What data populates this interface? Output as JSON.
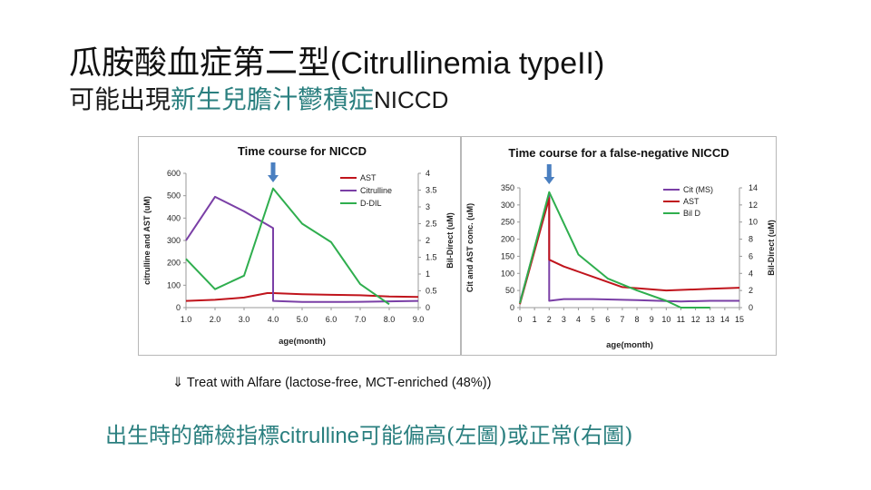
{
  "title": {
    "main": "瓜胺酸血症第二型",
    "latin": "(Citrullinemia typeII)"
  },
  "subtitle": {
    "lead": "可能出現",
    "highlight": "新生兒膽汁鬱積症",
    "latin": "NICCD"
  },
  "note": "⇓ Treat with Alfare (lactose-free, MCT-enriched (48%))",
  "footer": {
    "p1": "出生時的篩檢指標",
    "latin": "citrulline",
    "p2": "可能偏高(左圖)或正常(右圖)"
  },
  "colors": {
    "ast": "#c0141c",
    "citrulline": "#7a3fa6",
    "dbil": "#2fae4e",
    "arrow": "#4a7fc0",
    "teal": "#2a7f7f"
  },
  "chart_data": [
    {
      "type": "line",
      "title": "Time course for NICCD",
      "xlabel": "age(month)",
      "ylabel": "citrulline and AST (uM)",
      "y2label": "Bil-Direct (uM)",
      "xlim": [
        1,
        9
      ],
      "ylim": [
        0,
        600
      ],
      "y2lim": [
        0,
        4
      ],
      "x_ticks": [
        "1.0",
        "2.0",
        "3.0",
        "4.0",
        "5.0",
        "6.0",
        "7.0",
        "8.0",
        "9.0"
      ],
      "y_ticks": [
        "0",
        "100",
        "200",
        "300",
        "400",
        "500",
        "600"
      ],
      "y2_ticks": [
        "0",
        "0.5",
        "1",
        "1.5",
        "2",
        "2.5",
        "3",
        "3.5",
        "4"
      ],
      "arrow_x": 4.0,
      "series": [
        {
          "name": "AST",
          "axis": "left",
          "color_key": "ast",
          "points": [
            [
              1.0,
              30
            ],
            [
              2.0,
              35
            ],
            [
              3.0,
              45
            ],
            [
              3.8,
              65
            ],
            [
              4.0,
              65
            ],
            [
              5.0,
              60
            ],
            [
              6.0,
              57
            ],
            [
              7.0,
              55
            ],
            [
              8.0,
              50
            ],
            [
              9.0,
              48
            ]
          ]
        },
        {
          "name": "Citrulline",
          "axis": "left",
          "color_key": "citrulline",
          "points": [
            [
              1.0,
              300
            ],
            [
              2.0,
              495
            ],
            [
              3.0,
              430
            ],
            [
              4.0,
              355
            ],
            [
              4.0,
              30
            ],
            [
              5.0,
              25
            ],
            [
              6.0,
              25
            ],
            [
              7.0,
              26
            ],
            [
              8.0,
              28
            ],
            [
              9.0,
              30
            ]
          ]
        },
        {
          "name": "D-DIL",
          "axis": "right",
          "color_key": "dbil",
          "points": [
            [
              1.0,
              1.45
            ],
            [
              2.0,
              0.55
            ],
            [
              3.0,
              0.95
            ],
            [
              4.0,
              3.55
            ],
            [
              5.0,
              2.5
            ],
            [
              6.0,
              1.95
            ],
            [
              7.0,
              0.7
            ],
            [
              8.0,
              0.1
            ]
          ]
        }
      ]
    },
    {
      "type": "line",
      "title": "Time course for a false-negative NICCD",
      "xlabel": "age(month)",
      "ylabel": "Cit and AST conc. (uM)",
      "y2label": "Bil-Direct (uM)",
      "xlim": [
        0,
        15
      ],
      "ylim": [
        0,
        350
      ],
      "y2lim": [
        0,
        14
      ],
      "x_ticks": [
        "0",
        "1",
        "2",
        "3",
        "4",
        "5",
        "6",
        "7",
        "8",
        "9",
        "10",
        "11",
        "12",
        "13",
        "14",
        "15"
      ],
      "y_ticks": [
        "0",
        "50",
        "100",
        "150",
        "200",
        "250",
        "300",
        "350"
      ],
      "y2_ticks": [
        "0",
        "2",
        "4",
        "6",
        "8",
        "10",
        "12",
        "14"
      ],
      "arrow_x": 2.0,
      "series": [
        {
          "name": "Cit (MS)",
          "axis": "left",
          "color_key": "citrulline",
          "points": [
            [
              0,
              15
            ],
            [
              2.0,
              330
            ],
            [
              2.0,
              20
            ],
            [
              3.0,
              25
            ],
            [
              5.0,
              25
            ],
            [
              8.0,
              22
            ],
            [
              11.0,
              18
            ],
            [
              13.0,
              20
            ],
            [
              15.0,
              20
            ]
          ]
        },
        {
          "name": "AST",
          "axis": "left",
          "color_key": "ast",
          "points": [
            [
              0,
              10
            ],
            [
              2.0,
              320
            ],
            [
              2.0,
              140
            ],
            [
              3.0,
              120
            ],
            [
              5.0,
              90
            ],
            [
              7.0,
              60
            ],
            [
              10.0,
              50
            ],
            [
              13.0,
              55
            ],
            [
              15.0,
              58
            ]
          ]
        },
        {
          "name": "Bil D",
          "axis": "right",
          "color_key": "dbil",
          "points": [
            [
              0,
              0.5
            ],
            [
              2.0,
              13.5
            ],
            [
              4.0,
              6.2
            ],
            [
              6.0,
              3.4
            ],
            [
              8.0,
              2.0
            ],
            [
              10.0,
              0.8
            ],
            [
              11.0,
              0.0
            ],
            [
              13.0,
              0.0
            ]
          ]
        }
      ]
    }
  ]
}
